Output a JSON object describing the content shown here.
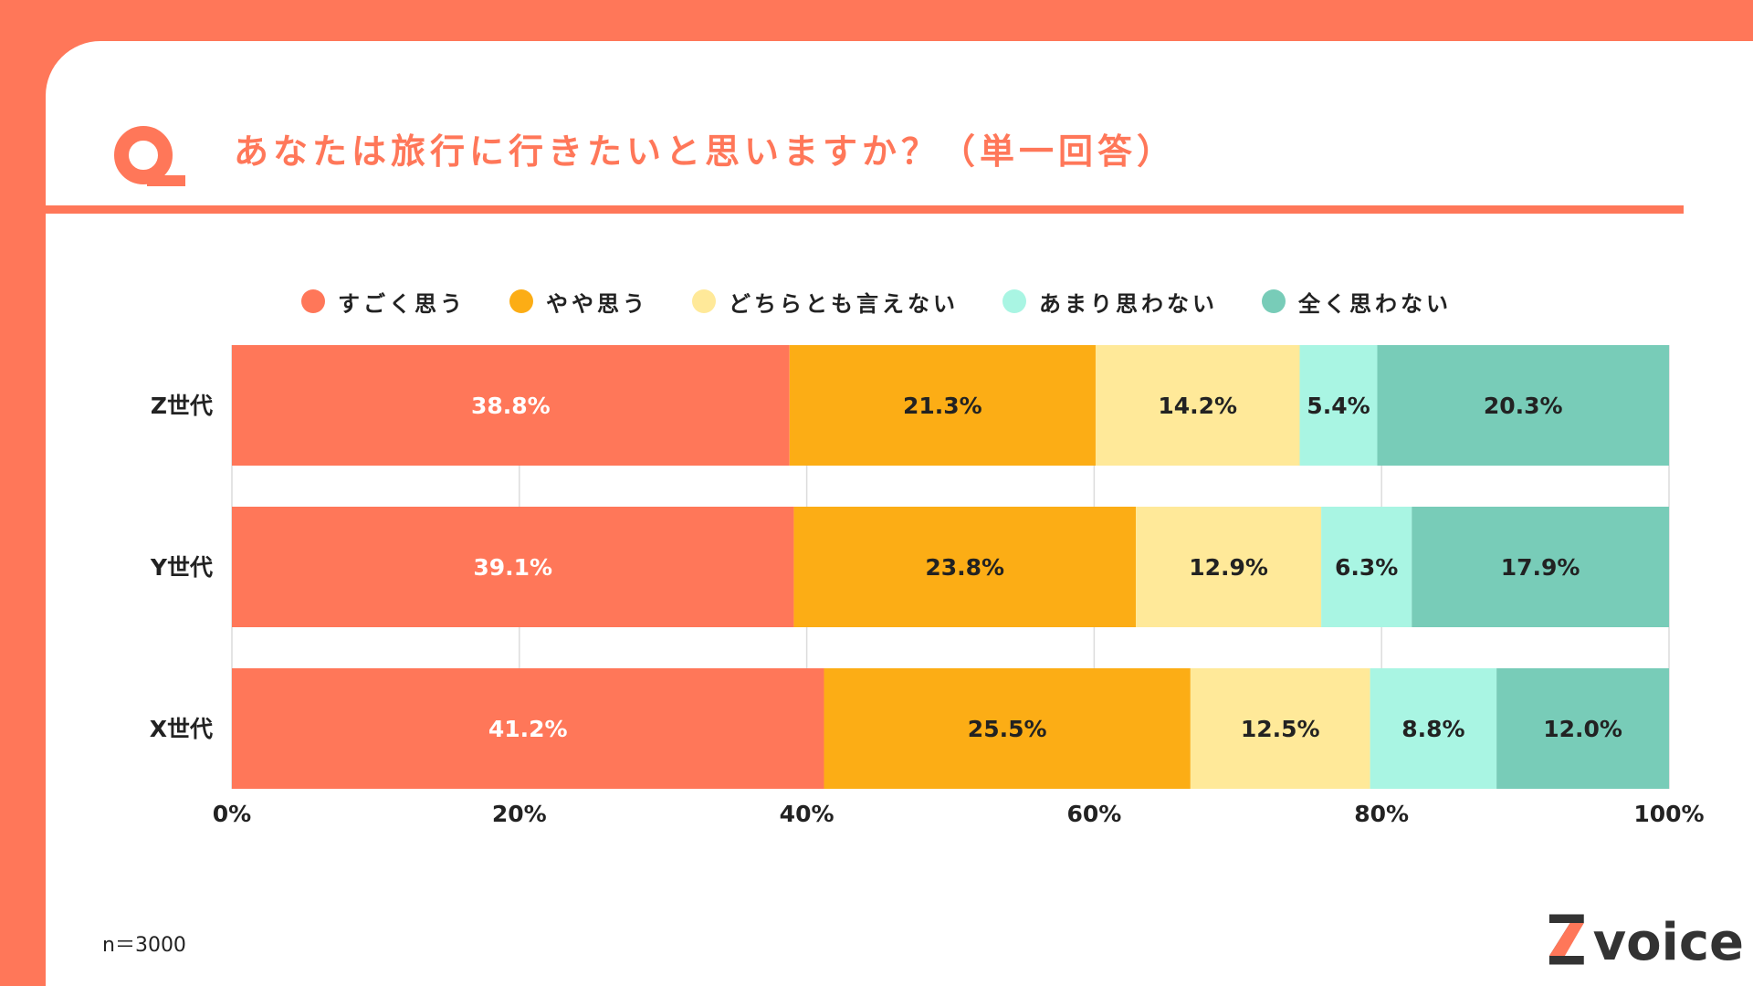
{
  "colors": {
    "accent": "#ff7759",
    "title": "#ff7759",
    "text": "#222222",
    "white": "#ffffff",
    "grid": "#dcdcdc",
    "brand_dark": "#333333"
  },
  "header": {
    "icon": "q-icon",
    "title": "あなたは旅行に行きたいと思いますか？（単一回答）"
  },
  "legend": [
    {
      "label": "すごく思う",
      "color": "#ff7759"
    },
    {
      "label": "やや思う",
      "color": "#fcad15"
    },
    {
      "label": "どちらとも言えない",
      "color": "#ffe999"
    },
    {
      "label": "あまり思わない",
      "color": "#a9f5e3"
    },
    {
      "label": "全く思わない",
      "color": "#78ccb8"
    }
  ],
  "chart_data": {
    "type": "bar",
    "orientation": "horizontal",
    "stacked": true,
    "title": "あなたは旅行に行きたいと思いますか？（単一回答）",
    "categories": [
      "Z世代",
      "Y世代",
      "X世代"
    ],
    "series": [
      {
        "name": "すごく思う",
        "color": "#ff7759",
        "values": [
          38.8,
          39.1,
          41.2
        ],
        "labels": [
          "38.8%",
          "39.1%",
          "41.2%"
        ],
        "label_color": "#ffffff"
      },
      {
        "name": "やや思う",
        "color": "#fcad15",
        "values": [
          21.3,
          23.8,
          25.5
        ],
        "labels": [
          "21.3%",
          "23.8%",
          "25.5%"
        ],
        "label_color": "#222222"
      },
      {
        "name": "どちらとも言えない",
        "color": "#ffe999",
        "values": [
          14.2,
          12.9,
          12.5
        ],
        "labels": [
          "14.2%",
          "12.9%",
          "12.5%"
        ],
        "label_color": "#222222"
      },
      {
        "name": "あまり思わない",
        "color": "#a9f5e3",
        "values": [
          5.4,
          6.3,
          8.8
        ],
        "labels": [
          "5.4%",
          "6.3%",
          "8.8%"
        ],
        "label_color": "#222222"
      },
      {
        "name": "全く思わない",
        "color": "#78ccb8",
        "values": [
          20.3,
          17.9,
          12.0
        ],
        "labels": [
          "20.3%",
          "17.9%",
          "12.0%"
        ],
        "label_color": "#222222"
      }
    ],
    "xlim": [
      0,
      100
    ],
    "x_ticks": [
      0,
      20,
      40,
      60,
      80,
      100
    ],
    "x_tick_labels": [
      "0%",
      "20%",
      "40%",
      "60%",
      "80%",
      "100%"
    ],
    "xlabel": "",
    "ylabel": "",
    "grid": true,
    "legend_position": "top-center"
  },
  "footer": {
    "sample_size": "n＝3000",
    "brand_mark": "Z",
    "brand_word": "voice"
  }
}
